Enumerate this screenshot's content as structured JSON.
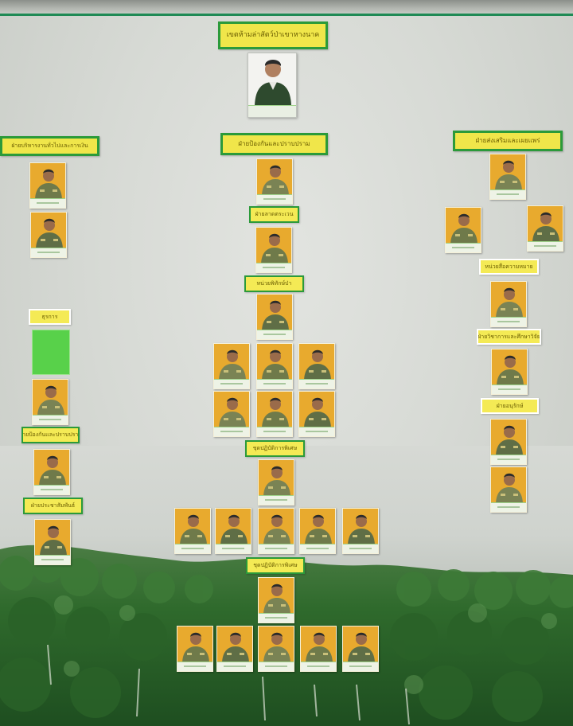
{
  "board": {
    "title": "เขตห้ามล่าสัตว์ป่าเขาหางนาค",
    "background_colors": {
      "board": "#d7dad5",
      "forest": "#2f6a2c",
      "label_fill": "#f0e64a",
      "label_border": "#2b9a3a",
      "photo_fill": "#e8aa2e",
      "vacant_fill": "#58d14a"
    }
  },
  "sections": {
    "left": {
      "heading": "ฝ่ายบริหารงานทั่วไปและการเงิน",
      "sub1": "ธุรการ",
      "sub2": "ฝ่ายป้องกันและปราบปราม",
      "sub3": "ฝ่ายประชาสัมพันธ์"
    },
    "center": {
      "heading": "ฝ่ายป้องกันและปราบปราม",
      "sub1": "ฝ่ายลาดตระเวน",
      "sub2": "หน่วยพิทักษ์ป่า",
      "sub3": "ชุดปฏิบัติการพิเศษ",
      "sub4": "ชุดปฏิบัติการพิเศษ"
    },
    "right": {
      "heading": "ฝ่ายส่งเสริมและเผยแพร่",
      "sub1": "หน่วยสื่อความหมาย",
      "sub2": "ฝ่ายวิชาการและศึกษาวิจัย",
      "sub3": "ฝ่ายอนุรักษ์"
    }
  }
}
